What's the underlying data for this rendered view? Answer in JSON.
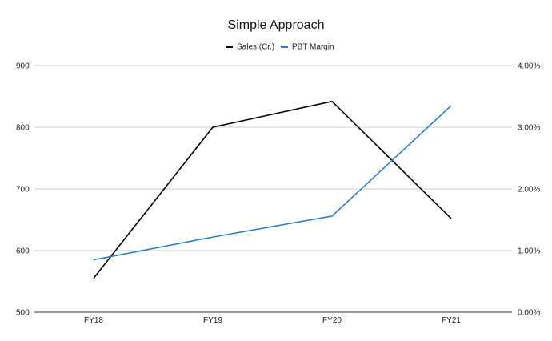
{
  "chart_data": {
    "type": "line",
    "title": "Simple Approach",
    "categories": [
      "FY18",
      "FY19",
      "FY20",
      "FY21"
    ],
    "series": [
      {
        "name": "Sales (Cr.)",
        "axis": "left",
        "color": "#000000",
        "values": [
          555,
          800,
          842,
          652
        ]
      },
      {
        "name": "PBT Margin",
        "axis": "right",
        "color": "#2f7ec1",
        "values": [
          0.85,
          1.22,
          1.56,
          3.35
        ]
      }
    ],
    "y_left": {
      "ticks": [
        "500",
        "600",
        "700",
        "800",
        "900"
      ],
      "range": [
        500,
        900
      ]
    },
    "y_right": {
      "ticks": [
        "0.00%",
        "1.00%",
        "2.00%",
        "3.00%",
        "4.00%"
      ],
      "range": [
        0,
        4
      ]
    },
    "grid": true,
    "legend_position": "top"
  }
}
